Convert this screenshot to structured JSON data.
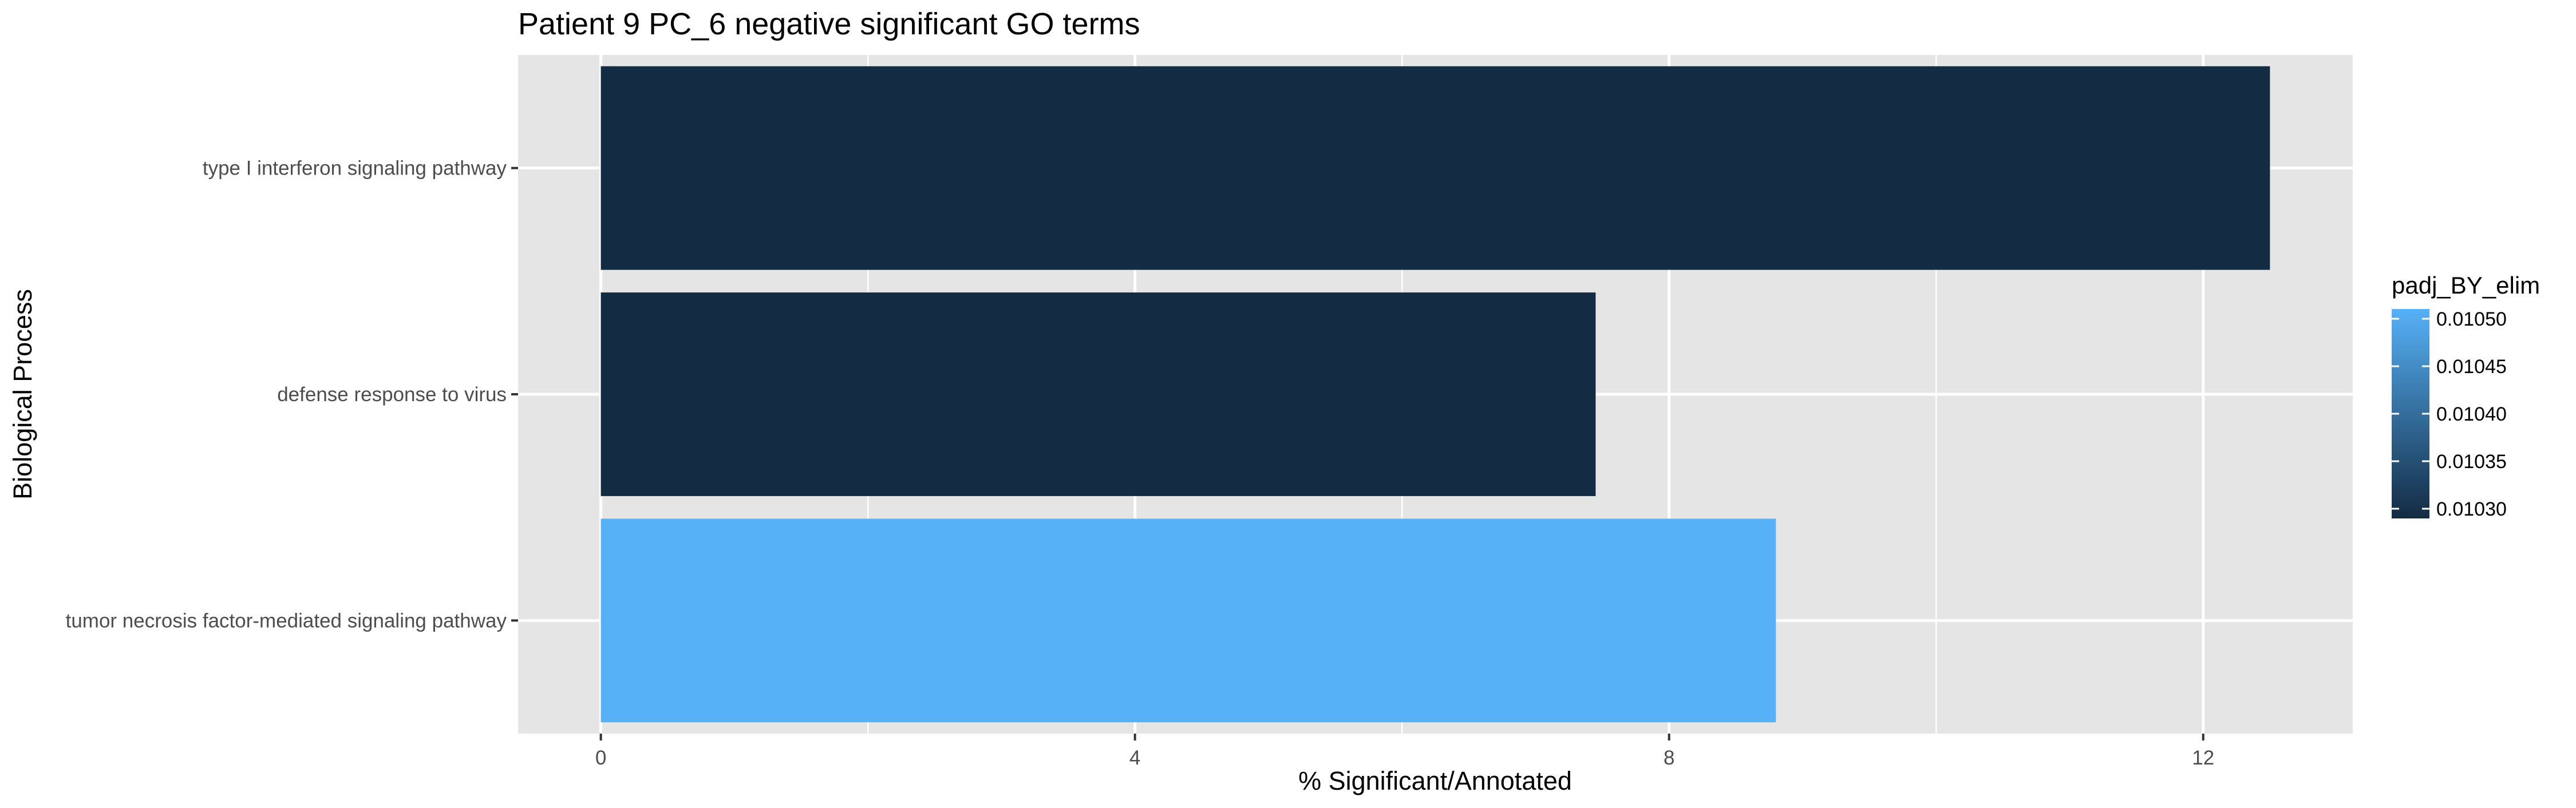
{
  "chart_data": {
    "type": "bar",
    "orientation": "horizontal",
    "title": "Patient 9 PC_6 negative significant GO terms",
    "xlabel": "% Significant/Annotated",
    "ylabel": "Biological Process",
    "xlim": [
      -0.62,
      13.12
    ],
    "x_ticks": [
      "0",
      "4",
      "8",
      "12"
    ],
    "grid": true,
    "categories": [
      "type I interferon signaling pathway",
      "defense response to virus",
      "tumor necrosis factor-mediated signaling pathway"
    ],
    "values": [
      12.5,
      7.45,
      8.8
    ],
    "fill_values": [
      0.0103,
      0.0103,
      0.0105
    ],
    "legend": {
      "title": "padj_BY_elim",
      "position": "right",
      "type": "colorbar",
      "labels": [
        "0.01050",
        "0.01045",
        "0.01040",
        "0.01035",
        "0.01030"
      ],
      "range": [
        0.0103,
        0.0105
      ],
      "low_color": "#132B43",
      "high_color": "#56B1F7"
    },
    "panel_background": "#e5e5e5",
    "grid_color": "#ffffff"
  }
}
